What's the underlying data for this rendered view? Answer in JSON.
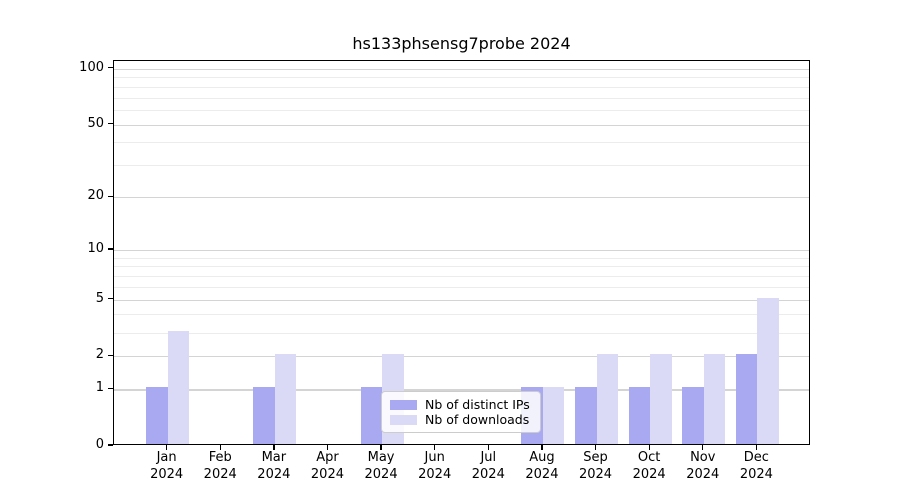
{
  "title": "hs133phsensg7probe 2024",
  "chart_data": {
    "type": "bar",
    "title": "hs133phsensg7probe 2024",
    "categories": [
      "Jan",
      "Feb",
      "Mar",
      "Apr",
      "May",
      "Jun",
      "Jul",
      "Aug",
      "Sep",
      "Oct",
      "Nov",
      "Dec"
    ],
    "category_year": "2024",
    "series": [
      {
        "name": "Nb of distinct IPs",
        "color": "#a9a9f1",
        "values": [
          1,
          0,
          1,
          0,
          1,
          0,
          0,
          1,
          1,
          1,
          1,
          2
        ]
      },
      {
        "name": "Nb of downloads",
        "color": "#dadaf7",
        "values": [
          3,
          0,
          2,
          0,
          2,
          0,
          0,
          1,
          2,
          2,
          2,
          5
        ]
      }
    ],
    "xlabel": "",
    "ylabel": "",
    "yscale": "log1p",
    "ylim": [
      0,
      110
    ],
    "y_major_ticks": [
      100,
      50,
      20,
      10,
      5,
      2,
      1,
      0
    ],
    "y_minor_ticks": [
      3,
      4,
      6,
      7,
      8,
      9,
      30,
      40,
      60,
      70,
      80,
      90
    ],
    "grid": true,
    "legend_position": "lower center"
  },
  "colors": {
    "background": "#ffffff",
    "spine": "#000000",
    "grid_major": "#d4d4d4",
    "grid_minor": "#ececec",
    "bar_distinct_ips": "#a9a9f1",
    "bar_downloads": "#dadaf7",
    "text": "#000000",
    "legend_border": "#cccccc"
  }
}
